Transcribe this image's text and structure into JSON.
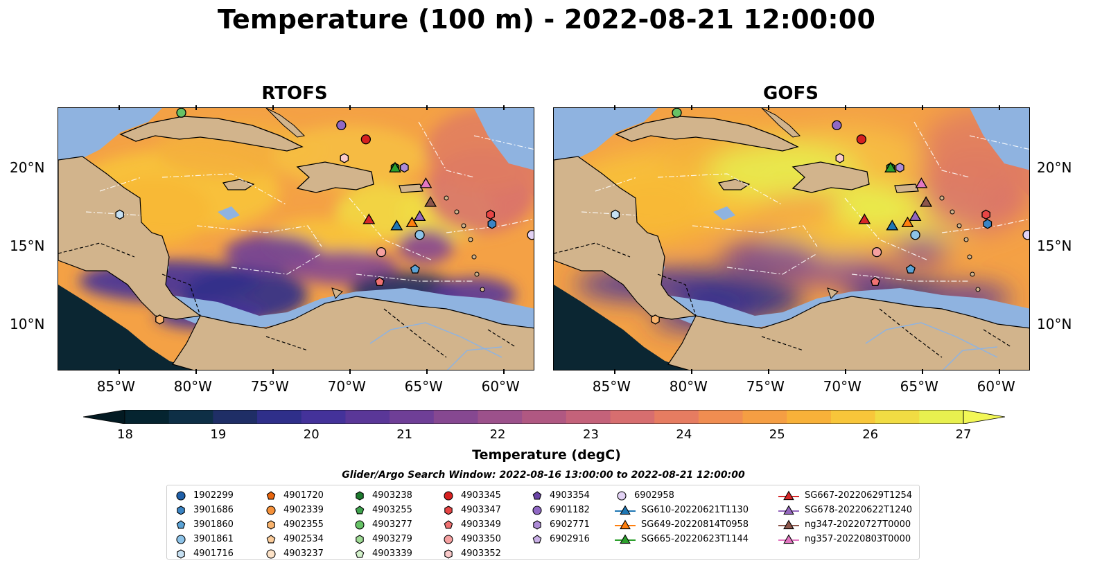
{
  "title": "Temperature (100 m) - 2022-08-21 12:00:00",
  "panels": [
    {
      "title": "RTOFS"
    },
    {
      "title": "GOFS"
    }
  ],
  "axes": {
    "lon_ticks": [
      "85°W",
      "80°W",
      "75°W",
      "70°W",
      "65°W",
      "60°W"
    ],
    "lat_ticks": [
      "20°N",
      "15°N",
      "10°N"
    ]
  },
  "colorbar": {
    "ticks": [
      "18",
      "19",
      "20",
      "21",
      "22",
      "23",
      "24",
      "25",
      "26",
      "27"
    ],
    "label": "Temperature (degC)",
    "colors": [
      "#052430",
      "#0e2f46",
      "#1f2e66",
      "#2f2f8a",
      "#44329a",
      "#5a3798",
      "#6f3f97",
      "#864891",
      "#9c518b",
      "#b05882",
      "#c4627a",
      "#d76e6f",
      "#e67c61",
      "#f08d51",
      "#f59e43",
      "#f8b139",
      "#f8c63a",
      "#f1dc43",
      "#e8f04f"
    ]
  },
  "colors": {
    "land": "#d2b48c",
    "shallow_water": "#8fb3e0",
    "deep_ocean": "#0b2632"
  },
  "search_window": "Glider/Argo Search Window: 2022-08-16 13:00:00 to 2022-08-21 12:00:00",
  "legend": [
    [
      {
        "label": "1902299",
        "marker": "circle",
        "color": "#1f5fa8"
      },
      {
        "label": "3901686",
        "marker": "hexagon",
        "color": "#3a84c4"
      },
      {
        "label": "3901860",
        "marker": "pentagon",
        "color": "#5ba3d6"
      },
      {
        "label": "3901861",
        "marker": "circle",
        "color": "#8dc3e8"
      },
      {
        "label": "4901716",
        "marker": "hexagon",
        "color": "#c6e0f2"
      }
    ],
    [
      {
        "label": "4901720",
        "marker": "pentagon",
        "color": "#e8650e"
      },
      {
        "label": "4902339",
        "marker": "circle",
        "color": "#f5913a"
      },
      {
        "label": "4902355",
        "marker": "hexagon",
        "color": "#f8b36d"
      },
      {
        "label": "4902534",
        "marker": "pentagon",
        "color": "#fbcc9a"
      },
      {
        "label": "4903237",
        "marker": "circle",
        "color": "#fde3c8"
      }
    ],
    [
      {
        "label": "4903238",
        "marker": "hexagon",
        "color": "#1d7a2e"
      },
      {
        "label": "4903255",
        "marker": "pentagon",
        "color": "#3fa34d"
      },
      {
        "label": "4903277",
        "marker": "circle",
        "color": "#66c266"
      },
      {
        "label": "4903279",
        "marker": "hexagon",
        "color": "#9fdb95"
      },
      {
        "label": "4903339",
        "marker": "pentagon",
        "color": "#d3f1cb"
      }
    ],
    [
      {
        "label": "4903345",
        "marker": "circle",
        "color": "#d62020"
      },
      {
        "label": "4903347",
        "marker": "hexagon",
        "color": "#e84545"
      },
      {
        "label": "4903349",
        "marker": "pentagon",
        "color": "#f07272"
      },
      {
        "label": "4903350",
        "marker": "circle",
        "color": "#f5a0a0"
      },
      {
        "label": "4903352",
        "marker": "hexagon",
        "color": "#fbcaca"
      }
    ],
    [
      {
        "label": "4903354",
        "marker": "pentagon",
        "color": "#6a44a6"
      },
      {
        "label": "6901182",
        "marker": "circle",
        "color": "#9068c4"
      },
      {
        "label": "6902771",
        "marker": "hexagon",
        "color": "#ad8bd6"
      },
      {
        "label": "6902916",
        "marker": "pentagon",
        "color": "#c9afe6"
      },
      {
        "label": ""
      }
    ],
    [
      {
        "label": "6902958",
        "marker": "circle",
        "color": "#e2d2f4"
      },
      {
        "label": "SG610-20220621T1130",
        "marker": "triangle",
        "color": "#1f77b4",
        "line": true
      },
      {
        "label": "SG649-20220814T0958",
        "marker": "triangle",
        "color": "#ff7f0e",
        "line": true
      },
      {
        "label": "SG665-20220623T1144",
        "marker": "triangle",
        "color": "#2ca02c",
        "line": true
      },
      {
        "label": ""
      }
    ],
    [
      {
        "label": "SG667-20220629T1254",
        "marker": "triangle",
        "color": "#d62728",
        "line": true
      },
      {
        "label": "SG678-20220622T1240",
        "marker": "triangle",
        "color": "#9467bd",
        "line": true
      },
      {
        "label": "ng347-20220727T0000",
        "marker": "triangle",
        "color": "#8c564b",
        "line": true
      },
      {
        "label": "ng357-20220803T0000",
        "marker": "triangle",
        "color": "#e377c2",
        "line": true
      },
      {
        "label": ""
      }
    ]
  ],
  "observations": [
    {
      "id": "4903277",
      "lon": -81.0,
      "lat": 23.6,
      "marker": "circle",
      "color": "#66c266"
    },
    {
      "id": "4902355",
      "lon": -82.4,
      "lat": 10.4,
      "marker": "hexagon",
      "color": "#f8b36d"
    },
    {
      "id": "4901716",
      "lon": -85.0,
      "lat": 17.1,
      "marker": "hexagon",
      "color": "#c6e0f2"
    },
    {
      "id": "6901182",
      "lon": -70.6,
      "lat": 22.8,
      "marker": "circle",
      "color": "#9068c4"
    },
    {
      "id": "4903345",
      "lon": -69.0,
      "lat": 21.9,
      "marker": "circle",
      "color": "#d62020"
    },
    {
      "id": "4903352",
      "lon": -70.4,
      "lat": 20.7,
      "marker": "hexagon",
      "color": "#fbcaca"
    },
    {
      "id": "4903238",
      "lon": -67.1,
      "lat": 20.1,
      "marker": "hexagon",
      "color": "#1d7a2e"
    },
    {
      "id": "6902771",
      "lon": -66.5,
      "lat": 20.1,
      "marker": "hexagon",
      "color": "#ad8bd6"
    },
    {
      "id": "4903347",
      "lon": -60.9,
      "lat": 17.1,
      "marker": "hexagon",
      "color": "#e84545"
    },
    {
      "id": "3901686",
      "lon": -60.8,
      "lat": 16.5,
      "marker": "hexagon",
      "color": "#3a84c4"
    },
    {
      "id": "6902958",
      "lon": -58.2,
      "lat": 15.8,
      "marker": "circle",
      "color": "#e2d2f4"
    },
    {
      "id": "3901861",
      "lon": -65.5,
      "lat": 15.8,
      "marker": "circle",
      "color": "#8dc3e8"
    },
    {
      "id": "4903350",
      "lon": -68.0,
      "lat": 14.7,
      "marker": "circle",
      "color": "#f5a0a0"
    },
    {
      "id": "3901860",
      "lon": -65.8,
      "lat": 13.6,
      "marker": "pentagon",
      "color": "#5ba3d6"
    },
    {
      "id": "4903349",
      "lon": -68.1,
      "lat": 12.8,
      "marker": "pentagon",
      "color": "#f07272"
    },
    {
      "id": "SG667-20220629T1254",
      "lon": -68.8,
      "lat": 16.8,
      "marker": "triangle",
      "color": "#d62728"
    },
    {
      "id": "SG610-20220621T1130",
      "lon": -67.0,
      "lat": 16.4,
      "marker": "triangle",
      "color": "#1f77b4"
    },
    {
      "id": "SG649-20220814T0958",
      "lon": -66.0,
      "lat": 16.6,
      "marker": "triangle",
      "color": "#ff7f0e"
    },
    {
      "id": "SG678-20220622T1240",
      "lon": -65.5,
      "lat": 17.0,
      "marker": "triangle",
      "color": "#9467bd"
    },
    {
      "id": "ng347-20220727T0000",
      "lon": -64.8,
      "lat": 17.9,
      "marker": "triangle",
      "color": "#8c564b"
    },
    {
      "id": "ng357-20220803T0000",
      "lon": -65.1,
      "lat": 19.1,
      "marker": "triangle",
      "color": "#e377c2"
    },
    {
      "id": "SG665-20220623T1144",
      "lon": -67.1,
      "lat": 20.1,
      "marker": "triangle",
      "color": "#2ca02c"
    }
  ]
}
